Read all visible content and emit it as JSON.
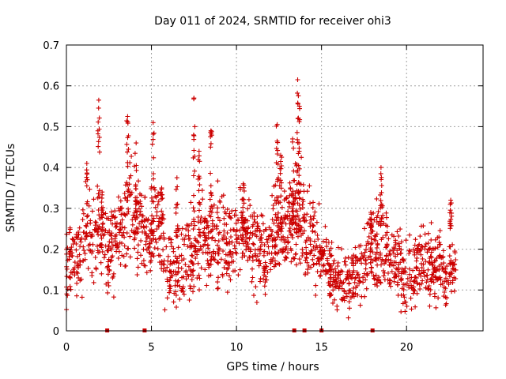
{
  "chart_data": {
    "type": "scatter",
    "title": "Day 011 of 2024, SRMTID for receiver ohi3",
    "xlabel": "GPS time / hours",
    "ylabel": "SRMTID / TECUs",
    "xlim": [
      0,
      24.5
    ],
    "ylim": [
      0,
      0.7
    ],
    "x_ticks": [
      0,
      5,
      10,
      15,
      20
    ],
    "x_tick_labels": [
      "0",
      "5",
      "10",
      "15",
      "20"
    ],
    "y_ticks": [
      0,
      0.1,
      0.2,
      0.3,
      0.4,
      0.5,
      0.6,
      0.7
    ],
    "y_tick_labels": [
      "0",
      "0.1",
      "0.2",
      "0.3",
      "0.4",
      "0.5",
      "0.6",
      "0.7"
    ],
    "grid": true,
    "marker": "+",
    "color": "#cc0000",
    "series": [
      {
        "name": "SRMTID",
        "x_range": [
          0,
          22.9
        ],
        "envelope": [
          {
            "x": 0.0,
            "y": 0.17,
            "spread": 0.05
          },
          {
            "x": 0.5,
            "y": 0.18,
            "spread": 0.05
          },
          {
            "x": 1.0,
            "y": 0.21,
            "spread": 0.06
          },
          {
            "x": 1.2,
            "y": 0.3,
            "spread": 0.08
          },
          {
            "x": 1.5,
            "y": 0.22,
            "spread": 0.05
          },
          {
            "x": 2.0,
            "y": 0.24,
            "spread": 0.07
          },
          {
            "x": 2.4,
            "y": 0.19,
            "spread": 0.05
          },
          {
            "x": 3.0,
            "y": 0.22,
            "spread": 0.06
          },
          {
            "x": 3.6,
            "y": 0.3,
            "spread": 0.08
          },
          {
            "x": 4.2,
            "y": 0.28,
            "spread": 0.07
          },
          {
            "x": 4.8,
            "y": 0.22,
            "spread": 0.05
          },
          {
            "x": 5.3,
            "y": 0.27,
            "spread": 0.07
          },
          {
            "x": 5.8,
            "y": 0.17,
            "spread": 0.05
          },
          {
            "x": 6.5,
            "y": 0.14,
            "spread": 0.05
          },
          {
            "x": 7.2,
            "y": 0.19,
            "spread": 0.06
          },
          {
            "x": 8.0,
            "y": 0.2,
            "spread": 0.06
          },
          {
            "x": 8.7,
            "y": 0.25,
            "spread": 0.07
          },
          {
            "x": 9.5,
            "y": 0.2,
            "spread": 0.06
          },
          {
            "x": 10.3,
            "y": 0.24,
            "spread": 0.06
          },
          {
            "x": 11.0,
            "y": 0.22,
            "spread": 0.06
          },
          {
            "x": 11.8,
            "y": 0.18,
            "spread": 0.05
          },
          {
            "x": 12.5,
            "y": 0.27,
            "spread": 0.07
          },
          {
            "x": 13.2,
            "y": 0.25,
            "spread": 0.07
          },
          {
            "x": 13.6,
            "y": 0.3,
            "spread": 0.09
          },
          {
            "x": 14.2,
            "y": 0.22,
            "spread": 0.06
          },
          {
            "x": 14.8,
            "y": 0.2,
            "spread": 0.05
          },
          {
            "x": 15.5,
            "y": 0.15,
            "spread": 0.04
          },
          {
            "x": 16.3,
            "y": 0.12,
            "spread": 0.04
          },
          {
            "x": 17.0,
            "y": 0.13,
            "spread": 0.04
          },
          {
            "x": 17.7,
            "y": 0.18,
            "spread": 0.05
          },
          {
            "x": 18.3,
            "y": 0.21,
            "spread": 0.06
          },
          {
            "x": 19.0,
            "y": 0.17,
            "spread": 0.05
          },
          {
            "x": 19.7,
            "y": 0.15,
            "spread": 0.05
          },
          {
            "x": 20.3,
            "y": 0.13,
            "spread": 0.05
          },
          {
            "x": 21.0,
            "y": 0.17,
            "spread": 0.05
          },
          {
            "x": 21.7,
            "y": 0.16,
            "spread": 0.05
          },
          {
            "x": 22.3,
            "y": 0.14,
            "spread": 0.04
          },
          {
            "x": 22.9,
            "y": 0.15,
            "spread": 0.04
          }
        ],
        "peaks": [
          {
            "x": 1.2,
            "y": 0.41
          },
          {
            "x": 1.9,
            "y": 0.565
          },
          {
            "x": 2.1,
            "y": 0.34
          },
          {
            "x": 3.6,
            "y": 0.525
          },
          {
            "x": 4.1,
            "y": 0.46
          },
          {
            "x": 5.1,
            "y": 0.51
          },
          {
            "x": 5.6,
            "y": 0.35
          },
          {
            "x": 6.5,
            "y": 0.375
          },
          {
            "x": 7.5,
            "y": 0.57
          },
          {
            "x": 7.8,
            "y": 0.44
          },
          {
            "x": 8.5,
            "y": 0.49
          },
          {
            "x": 10.4,
            "y": 0.36
          },
          {
            "x": 12.4,
            "y": 0.505
          },
          {
            "x": 12.6,
            "y": 0.43
          },
          {
            "x": 13.3,
            "y": 0.47
          },
          {
            "x": 13.6,
            "y": 0.615
          },
          {
            "x": 13.7,
            "y": 0.55
          },
          {
            "x": 17.9,
            "y": 0.29
          },
          {
            "x": 18.5,
            "y": 0.4
          },
          {
            "x": 22.6,
            "y": 0.32
          }
        ]
      },
      {
        "name": "data gaps",
        "marker": "square",
        "x": [
          2.4,
          4.6,
          13.4,
          14.0,
          15.0,
          18.0
        ],
        "y": [
          0,
          0,
          0,
          0,
          0,
          0
        ]
      }
    ]
  }
}
